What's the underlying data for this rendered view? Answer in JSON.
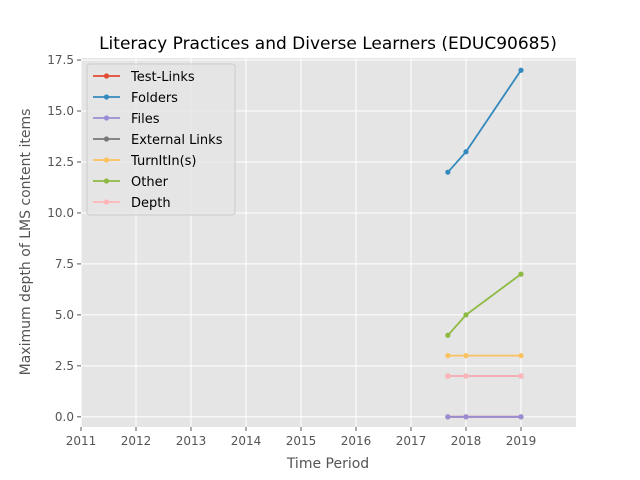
{
  "chart_data": {
    "type": "line",
    "title": "Literacy Practices and Diverse Learners (EDUC90685)",
    "xlabel": "Time Period",
    "ylabel": "Maximum depth of LMS content items",
    "xlim": [
      2011.0,
      2020.0
    ],
    "ylim": [
      -0.5,
      17.6
    ],
    "x_ticks": [
      2011,
      2012,
      2013,
      2014,
      2015,
      2016,
      2017,
      2018,
      2019
    ],
    "x_tick_labels": [
      "2011",
      "2012",
      "2013",
      "2014",
      "2015",
      "2016",
      "2017",
      "2018",
      "2019"
    ],
    "y_ticks": [
      0.0,
      2.5,
      5.0,
      7.5,
      10.0,
      12.5,
      15.0,
      17.5
    ],
    "y_tick_labels": [
      "0.0",
      "2.5",
      "5.0",
      "7.5",
      "10.0",
      "12.5",
      "15.0",
      "17.5"
    ],
    "grid": true,
    "legend_position": "upper-left",
    "x": [
      2017.67,
      2018.0,
      2019.0
    ],
    "series": [
      {
        "name": "Test-Links",
        "color": "#E24A33",
        "values": [
          0,
          0,
          0
        ]
      },
      {
        "name": "Folders",
        "color": "#348ABD",
        "values": [
          12,
          13,
          17
        ]
      },
      {
        "name": "Files",
        "color": "#988ED5",
        "values": [
          0,
          0,
          0
        ]
      },
      {
        "name": "External Links",
        "color": "#777777",
        "values": [
          2,
          2,
          2
        ]
      },
      {
        "name": "TurnItIn(s)",
        "color": "#FBC15E",
        "values": [
          3,
          3,
          3
        ]
      },
      {
        "name": "Other",
        "color": "#8EBA42",
        "values": [
          4,
          5,
          7
        ]
      },
      {
        "name": "Depth",
        "color": "#FFB5B8",
        "values": [
          2,
          2,
          2
        ]
      }
    ]
  }
}
